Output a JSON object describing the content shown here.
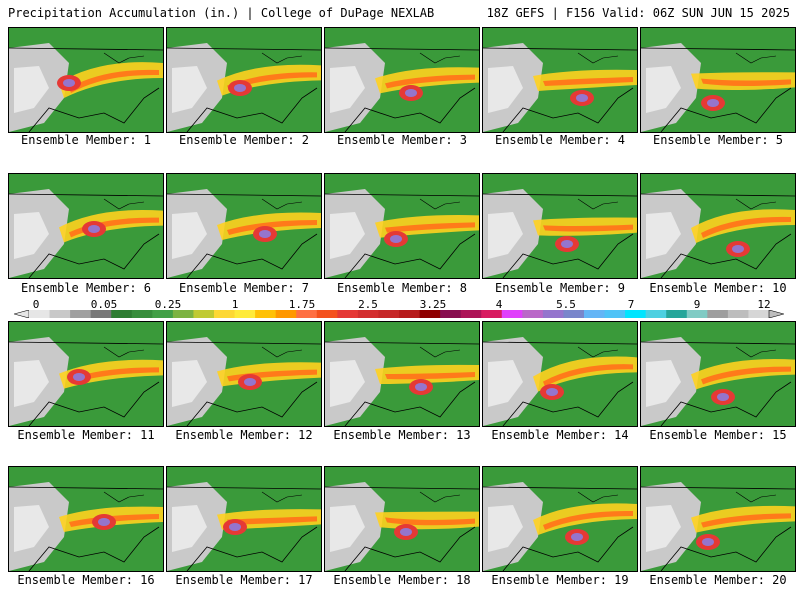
{
  "header": {
    "left": "Precipitation Accumulation (in.) | College of DuPage NEXLAB",
    "right": "18Z GEFS | F156 Valid: 06Z SUN JUN 15 2025"
  },
  "members": [
    "Ensemble Member: 1",
    "Ensemble Member: 2",
    "Ensemble Member: 3",
    "Ensemble Member: 4",
    "Ensemble Member: 5",
    "Ensemble Member: 6",
    "Ensemble Member: 7",
    "Ensemble Member: 8",
    "Ensemble Member: 9",
    "Ensemble Member: 10",
    "Ensemble Member: 11",
    "Ensemble Member: 12",
    "Ensemble Member: 13",
    "Ensemble Member: 14",
    "Ensemble Member: 15",
    "Ensemble Member: 16",
    "Ensemble Member: 17",
    "Ensemble Member: 18",
    "Ensemble Member: 19",
    "Ensemble Member: 20"
  ],
  "colorbar": {
    "labels": [
      "0",
      "0.05",
      "0.25",
      "1",
      "1.75",
      "2.5",
      "3.25",
      "4",
      "5.5",
      "7",
      "9",
      "12"
    ],
    "colors": [
      "#e6e6e6",
      "#c8c8c8",
      "#a0a0a0",
      "#787878",
      "#2e7d32",
      "#388e3c",
      "#43a047",
      "#7cb342",
      "#c0ca33",
      "#fdd835",
      "#ffeb3b",
      "#ffc107",
      "#ff9800",
      "#ff7043",
      "#f4511e",
      "#e53935",
      "#d32f2f",
      "#c62828",
      "#b71c1c",
      "#8e0000",
      "#880e4f",
      "#ad1457",
      "#d81b60",
      "#e040fb",
      "#ba68c8",
      "#9575cd",
      "#7986cb",
      "#64b5f6",
      "#4fc3f7",
      "#00e5ff",
      "#4dd0e1",
      "#26a69a",
      "#80cbc4",
      "#9e9e9e",
      "#bdbdbd",
      "#d6d6d6"
    ]
  }
}
